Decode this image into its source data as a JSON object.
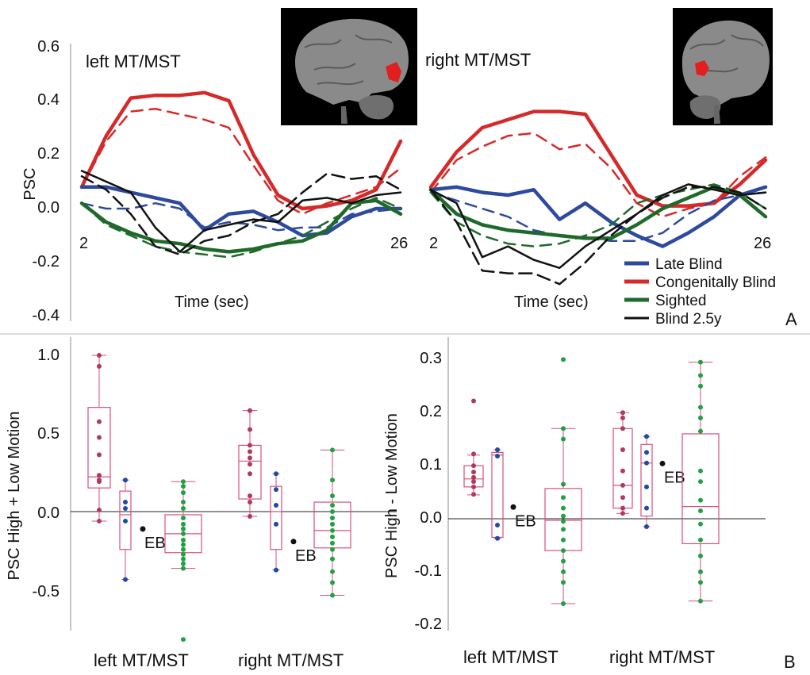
{
  "figure": {
    "panel_a_label": "A",
    "panel_b_label": "B",
    "eb_label": "EB"
  },
  "legend": [
    {
      "name": "Late Blind",
      "color": "#2e4a9e"
    },
    {
      "name": "Congenitally Blind",
      "color": "#d42a2a"
    },
    {
      "name": "Sighted",
      "color": "#1f6a2b"
    },
    {
      "name": "Blind 2.5y",
      "color": "#111111"
    }
  ],
  "chart_data": [
    {
      "type": "line",
      "id": "timecourse",
      "ylabel": "PSC",
      "xlabel": "Time (sec)",
      "ylim": [
        -0.4,
        0.6
      ],
      "yticks": [
        "0.6",
        "0.4",
        "0.2",
        "0.0",
        "-0.2",
        "-0.4"
      ],
      "panels": [
        {
          "title": "left MT/MST",
          "x_tick_labels": [
            "2",
            "26"
          ],
          "x": [
            2,
            4,
            6,
            8,
            10,
            12,
            14,
            16,
            18,
            20,
            22,
            24,
            26,
            28
          ],
          "series": [
            {
              "name": "Congenitally Blind",
              "color": "#d42a2a",
              "style": "solid",
              "values": [
                0.08,
                0.27,
                0.41,
                0.42,
                0.42,
                0.43,
                0.4,
                0.2,
                0.05,
                0.0,
                0.01,
                0.03,
                0.07,
                0.25
              ]
            },
            {
              "name": "Congenitally Blind",
              "color": "#d42a2a",
              "style": "dashed",
              "values": [
                0.08,
                0.25,
                0.36,
                0.37,
                0.35,
                0.33,
                0.3,
                0.16,
                0.03,
                -0.02,
                0.02,
                0.05,
                0.08,
                0.15
              ]
            },
            {
              "name": "Late Blind",
              "color": "#2e4a9e",
              "style": "solid",
              "values": [
                0.08,
                0.08,
                0.06,
                0.04,
                0.02,
                -0.08,
                -0.02,
                -0.01,
                -0.05,
                -0.1,
                -0.09,
                -0.03,
                0.0,
                0.0
              ]
            },
            {
              "name": "Late Blind",
              "color": "#2e4a9e",
              "style": "dashed",
              "values": [
                0.02,
                0.0,
                0.0,
                0.02,
                0.0,
                -0.07,
                -0.05,
                -0.06,
                -0.08,
                -0.07,
                -0.07,
                -0.02,
                -0.01,
                0.0
              ]
            },
            {
              "name": "Sighted",
              "color": "#1f6a2b",
              "style": "solid",
              "values": [
                0.02,
                -0.05,
                -0.09,
                -0.12,
                -0.13,
                -0.15,
                -0.16,
                -0.15,
                -0.13,
                -0.12,
                -0.08,
                0.02,
                0.03,
                -0.02
              ]
            },
            {
              "name": "Sighted",
              "color": "#1f6a2b",
              "style": "dashed",
              "values": [
                0.02,
                -0.06,
                -0.1,
                -0.14,
                -0.16,
                -0.17,
                -0.18,
                -0.16,
                -0.13,
                -0.1,
                -0.05,
                0.0,
                0.04,
                0.0
              ]
            },
            {
              "name": "Blind 2.5y",
              "color": "#111111",
              "style": "solid",
              "values": [
                0.14,
                0.1,
                0.06,
                -0.07,
                -0.16,
                -0.08,
                -0.06,
                -0.04,
                -0.05,
                0.03,
                0.04,
                0.02,
                0.05,
                0.06
              ]
            },
            {
              "name": "Blind 2.5y",
              "color": "#111111",
              "style": "dashed",
              "values": [
                0.12,
                0.07,
                -0.02,
                -0.14,
                -0.17,
                -0.12,
                -0.1,
                -0.05,
                -0.02,
                0.06,
                0.13,
                0.11,
                0.12,
                0.07
              ]
            }
          ]
        },
        {
          "title": "right MT/MST",
          "x_tick_labels": [
            "2",
            "26"
          ],
          "x": [
            2,
            4,
            6,
            8,
            10,
            12,
            14,
            16,
            18,
            20,
            22,
            24,
            26,
            28
          ],
          "series": [
            {
              "name": "Congenitally Blind",
              "color": "#d42a2a",
              "style": "solid",
              "values": [
                0.08,
                0.21,
                0.3,
                0.33,
                0.36,
                0.36,
                0.35,
                0.2,
                0.05,
                0.01,
                0.01,
                0.02,
                0.09,
                0.18
              ]
            },
            {
              "name": "Congenitally Blind",
              "color": "#d42a2a",
              "style": "dashed",
              "values": [
                0.06,
                0.18,
                0.23,
                0.27,
                0.28,
                0.22,
                0.24,
                0.15,
                0.02,
                -0.03,
                0.0,
                0.02,
                0.12,
                0.19
              ]
            },
            {
              "name": "Late Blind",
              "color": "#2e4a9e",
              "style": "solid",
              "values": [
                0.07,
                0.08,
                0.06,
                0.05,
                0.07,
                -0.04,
                0.02,
                -0.05,
                -0.1,
                -0.14,
                -0.09,
                -0.03,
                0.05,
                0.08
              ]
            },
            {
              "name": "Late Blind",
              "color": "#2e4a9e",
              "style": "dashed",
              "values": [
                0.06,
                0.03,
                0.0,
                -0.03,
                -0.08,
                -0.1,
                -0.11,
                -0.12,
                -0.12,
                -0.09,
                -0.02,
                0.03,
                0.05,
                0.06
              ]
            },
            {
              "name": "Sighted",
              "color": "#1f6a2b",
              "style": "solid",
              "values": [
                0.07,
                -0.02,
                -0.06,
                -0.08,
                -0.09,
                -0.1,
                -0.11,
                -0.11,
                -0.06,
                0.0,
                0.04,
                0.08,
                0.05,
                -0.03
              ]
            },
            {
              "name": "Sighted",
              "color": "#1f6a2b",
              "style": "dashed",
              "values": [
                0.06,
                -0.05,
                -0.1,
                -0.13,
                -0.14,
                -0.13,
                -0.1,
                -0.06,
                0.02,
                0.05,
                0.07,
                0.09,
                0.06,
                0.0
              ]
            },
            {
              "name": "Blind 2.5y",
              "color": "#111111",
              "style": "solid",
              "values": [
                0.07,
                0.02,
                -0.18,
                -0.14,
                -0.19,
                -0.22,
                -0.14,
                -0.08,
                -0.02,
                0.05,
                0.09,
                0.07,
                0.05,
                0.06
              ]
            },
            {
              "name": "Blind 2.5y",
              "color": "#111111",
              "style": "dashed",
              "values": [
                0.07,
                -0.05,
                -0.23,
                -0.24,
                -0.24,
                -0.28,
                -0.2,
                -0.1,
                -0.02,
                0.04,
                0.08,
                0.08,
                0.06,
                0.0
              ]
            }
          ]
        }
      ]
    },
    {
      "type": "box",
      "id": "sum_contrast",
      "ylabel": "PSC High + Low Motion",
      "ylim": [
        -0.8,
        1.1
      ],
      "yticks": [
        "1.0",
        "0.5",
        "0.0",
        "-0.5"
      ],
      "categories": [
        "left MT/MST",
        "right MT/MST"
      ],
      "groups": [
        {
          "region": "left MT/MST",
          "group": "Congenitally Blind",
          "color": "#b13a5c",
          "box": {
            "min": -0.06,
            "q1": 0.15,
            "median": 0.22,
            "q3": 0.66,
            "max": 0.99
          },
          "points": [
            0.99,
            0.92,
            0.57,
            0.47,
            0.36,
            0.23,
            0.2,
            0.19,
            0.01,
            -0.06
          ]
        },
        {
          "region": "left MT/MST",
          "group": "Late Blind",
          "color": "#1e4aa0",
          "box": {
            "min": -0.43,
            "q1": -0.24,
            "median": -0.02,
            "q3": 0.13,
            "max": 0.2
          },
          "points": [
            0.2,
            0.06,
            0.02,
            -0.06,
            -0.43
          ]
        },
        {
          "region": "left MT/MST",
          "group": "Blind 2.5y",
          "color": "#111111",
          "eb": true,
          "points": [
            -0.11
          ]
        },
        {
          "region": "left MT/MST",
          "group": "Sighted",
          "color": "#22a045",
          "box": {
            "min": -0.36,
            "q1": -0.26,
            "median": -0.14,
            "q3": -0.02,
            "max": 0.19
          },
          "points": [
            0.19,
            0.16,
            0.12,
            0.06,
            0.02,
            -0.04,
            -0.08,
            -0.11,
            -0.14,
            -0.18,
            -0.21,
            -0.24,
            -0.27,
            -0.3,
            -0.33,
            -0.36,
            -0.81
          ]
        },
        {
          "region": "right MT/MST",
          "group": "Congenitally Blind",
          "color": "#b13a5c",
          "box": {
            "min": -0.03,
            "q1": 0.08,
            "median": 0.32,
            "q3": 0.42,
            "max": 0.64
          },
          "points": [
            0.64,
            0.52,
            0.42,
            0.38,
            0.34,
            0.3,
            0.24,
            0.1,
            0.06,
            -0.03
          ]
        },
        {
          "region": "right MT/MST",
          "group": "Late Blind",
          "color": "#1e4aa0",
          "box": {
            "min": -0.37,
            "q1": -0.24,
            "median": 0.0,
            "q3": 0.16,
            "max": 0.24
          },
          "points": [
            0.24,
            0.14,
            0.04,
            -0.08,
            -0.37
          ]
        },
        {
          "region": "right MT/MST",
          "group": "Blind 2.5y",
          "color": "#111111",
          "eb": true,
          "points": [
            -0.19
          ]
        },
        {
          "region": "right MT/MST",
          "group": "Sighted",
          "color": "#22a045",
          "box": {
            "min": -0.53,
            "q1": -0.23,
            "median": -0.12,
            "q3": 0.06,
            "max": 0.39
          },
          "points": [
            0.39,
            0.2,
            0.1,
            0.04,
            0.0,
            -0.04,
            -0.08,
            -0.12,
            -0.16,
            -0.2,
            -0.24,
            -0.3,
            -0.38,
            -0.45,
            -0.53
          ]
        }
      ]
    },
    {
      "type": "box",
      "id": "diff_contrast",
      "ylabel": "PSC High - Low Motion",
      "ylim": [
        -0.2,
        0.33
      ],
      "yticks": [
        "0.3",
        "0.2",
        "0.1",
        "0.0",
        "-0.1",
        "-0.2"
      ],
      "categories": [
        "left MT/MST",
        "right MT/MST"
      ],
      "groups": [
        {
          "region": "left MT/MST",
          "group": "Congenitally Blind",
          "color": "#b13a5c",
          "box": {
            "min": 0.045,
            "q1": 0.06,
            "median": 0.075,
            "q3": 0.1,
            "max": 0.12
          },
          "points": [
            0.222,
            0.122,
            0.1,
            0.088,
            0.078,
            0.07,
            0.06,
            0.046
          ]
        },
        {
          "region": "left MT/MST",
          "group": "Late Blind",
          "color": "#1e4aa0",
          "box": {
            "min": -0.037,
            "q1": -0.035,
            "median": 0.12,
            "q3": 0.125,
            "max": 0.13
          },
          "points": [
            0.13,
            0.118,
            -0.012,
            -0.037
          ]
        },
        {
          "region": "left MT/MST",
          "group": "Blind 2.5y",
          "color": "#111111",
          "eb": true,
          "points": [
            0.022
          ]
        },
        {
          "region": "left MT/MST",
          "group": "Sighted",
          "color": "#22a045",
          "box": {
            "min": -0.16,
            "q1": -0.06,
            "median": -0.003,
            "q3": 0.057,
            "max": 0.17
          },
          "points": [
            0.3,
            0.17,
            0.15,
            0.065,
            0.04,
            0.02,
            0.005,
            -0.005,
            -0.02,
            -0.04,
            -0.06,
            -0.08,
            -0.1,
            -0.12,
            -0.16
          ]
        },
        {
          "region": "right MT/MST",
          "group": "Congenitally Blind",
          "color": "#b13a5c",
          "box": {
            "min": 0.01,
            "q1": 0.02,
            "median": 0.063,
            "q3": 0.17,
            "max": 0.2
          },
          "points": [
            0.2,
            0.19,
            0.17,
            0.13,
            0.09,
            0.063,
            0.04,
            0.02,
            0.01
          ]
        },
        {
          "region": "right MT/MST",
          "group": "Late Blind",
          "color": "#1e4aa0",
          "box": {
            "min": -0.015,
            "q1": 0.005,
            "median": 0.105,
            "q3": 0.14,
            "max": 0.155
          },
          "points": [
            0.155,
            0.125,
            0.105,
            0.06,
            0.02,
            -0.015
          ]
        },
        {
          "region": "right MT/MST",
          "group": "Blind 2.5y",
          "color": "#111111",
          "eb": true,
          "points": [
            0.104
          ]
        },
        {
          "region": "right MT/MST",
          "group": "Sighted",
          "color": "#22a045",
          "box": {
            "min": -0.155,
            "q1": -0.047,
            "median": 0.023,
            "q3": 0.16,
            "max": 0.295
          },
          "points": [
            0.295,
            0.27,
            0.25,
            0.21,
            0.19,
            0.165,
            0.09,
            0.07,
            0.035,
            0.015,
            -0.01,
            -0.04,
            -0.07,
            -0.1,
            -0.12,
            -0.155
          ]
        }
      ]
    }
  ]
}
